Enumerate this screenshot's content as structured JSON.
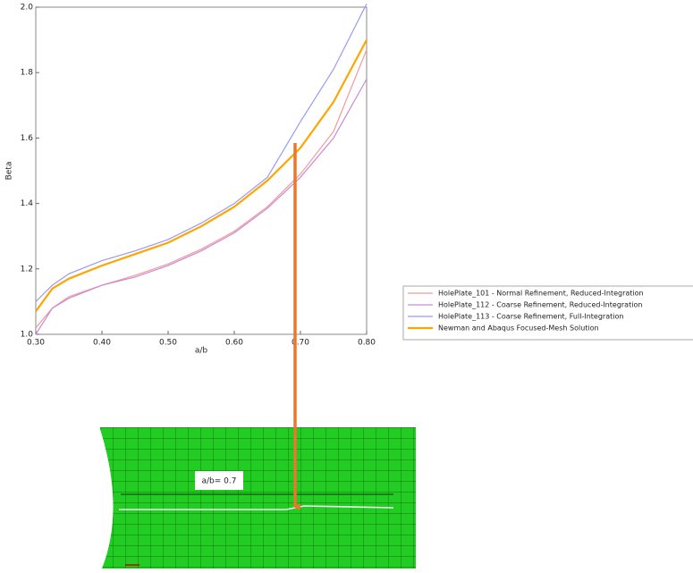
{
  "chart_data": {
    "type": "line",
    "xlabel": "a/b",
    "ylabel": "Beta",
    "x": [
      0.3,
      0.325,
      0.35,
      0.4,
      0.45,
      0.5,
      0.55,
      0.6,
      0.65,
      0.7,
      0.75,
      0.8
    ],
    "series": [
      {
        "name": "HolePlate_101 - Normal Refinement, Reduced-Integration",
        "color": "#f29a9a",
        "width": 1.2,
        "values": [
          1.02,
          1.08,
          1.115,
          1.15,
          1.18,
          1.215,
          1.26,
          1.315,
          1.39,
          1.49,
          1.62,
          1.87
        ]
      },
      {
        "name": "HolePlate_112 - Coarse Refinement, Reduced-Integration",
        "color": "#c98ad6",
        "width": 1.2,
        "values": [
          1.0,
          1.08,
          1.11,
          1.15,
          1.175,
          1.21,
          1.255,
          1.31,
          1.385,
          1.48,
          1.6,
          1.78
        ]
      },
      {
        "name": "HolePlate_113 - Coarse Refinement, Full-Integration",
        "color": "#9a9af0",
        "width": 1.2,
        "values": [
          1.1,
          1.15,
          1.185,
          1.225,
          1.255,
          1.29,
          1.34,
          1.4,
          1.48,
          1.65,
          1.81,
          2.01
        ]
      },
      {
        "name": "Newman and Abaqus Focused-Mesh Solution",
        "color": "#ffa500",
        "width": 2.2,
        "values": [
          1.07,
          1.14,
          1.17,
          1.21,
          1.245,
          1.28,
          1.33,
          1.39,
          1.47,
          1.57,
          1.71,
          1.9
        ]
      }
    ],
    "xlim": [
      0.3,
      0.8
    ],
    "xticks": [
      {
        "value": 0.3,
        "label": "0.30"
      },
      {
        "value": 0.4,
        "label": "0.40"
      },
      {
        "value": 0.5,
        "label": "0.50"
      },
      {
        "value": 0.6,
        "label": "0.60"
      },
      {
        "value": 0.7,
        "label": "0.70"
      },
      {
        "value": 0.8,
        "label": "0.80"
      }
    ],
    "ylim": [
      1.0,
      2.0
    ],
    "yticks": [
      {
        "value": 1.0,
        "label": "1.0"
      },
      1.2,
      1.4,
      1.6,
      1.8,
      {
        "value": 2.0,
        "label": "2.0"
      }
    ],
    "annotation": "a/b= 0.7"
  }
}
